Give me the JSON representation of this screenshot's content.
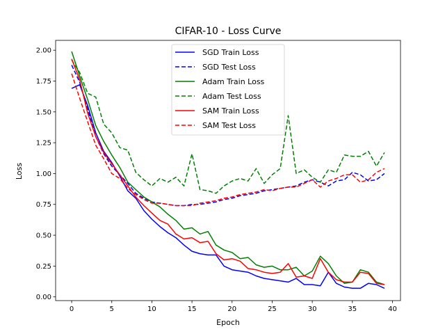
{
  "chart_data": {
    "type": "line",
    "title": "CIFAR-10 - Loss Curve",
    "xlabel": "Epoch",
    "ylabel": "Loss",
    "xlim": [
      -2,
      41
    ],
    "ylim": [
      -0.03,
      2.08
    ],
    "xticks": [
      0,
      5,
      10,
      15,
      20,
      25,
      30,
      35,
      40
    ],
    "yticks": [
      0.0,
      0.25,
      0.5,
      0.75,
      1.0,
      1.25,
      1.5,
      1.75,
      2.0
    ],
    "ytick_labels": [
      "0.00",
      "0.25",
      "0.50",
      "0.75",
      "1.00",
      "1.25",
      "1.50",
      "1.75",
      "2.00"
    ],
    "grid": false,
    "legend_position": "top-center",
    "x": [
      0,
      1,
      2,
      3,
      4,
      5,
      6,
      7,
      8,
      9,
      10,
      11,
      12,
      13,
      14,
      15,
      16,
      17,
      18,
      19,
      20,
      21,
      22,
      23,
      24,
      25,
      26,
      27,
      28,
      29,
      30,
      31,
      32,
      33,
      34,
      35,
      36,
      37,
      38,
      39
    ],
    "series": [
      {
        "name": "SGD Train Loss",
        "color": "#0000ff",
        "dash": "solid",
        "values": [
          1.69,
          1.72,
          1.55,
          1.33,
          1.18,
          1.09,
          0.98,
          0.86,
          0.8,
          0.7,
          0.63,
          0.57,
          0.52,
          0.48,
          0.42,
          0.37,
          0.35,
          0.34,
          0.34,
          0.25,
          0.22,
          0.21,
          0.2,
          0.17,
          0.15,
          0.14,
          0.13,
          0.12,
          0.15,
          0.1,
          0.1,
          0.09,
          0.2,
          0.11,
          0.08,
          0.07,
          0.07,
          0.11,
          0.1,
          0.07
        ]
      },
      {
        "name": "SGD Test Loss",
        "color": "#0000ff",
        "dash": "dashed",
        "values": [
          1.88,
          1.74,
          1.52,
          1.3,
          1.16,
          1.06,
          0.99,
          0.92,
          0.84,
          0.8,
          0.77,
          0.76,
          0.75,
          0.74,
          0.74,
          0.75,
          0.75,
          0.76,
          0.77,
          0.79,
          0.8,
          0.82,
          0.83,
          0.84,
          0.86,
          0.87,
          0.88,
          0.89,
          0.9,
          0.93,
          0.95,
          0.93,
          0.9,
          0.94,
          0.95,
          1.01,
          0.99,
          0.94,
          0.95,
          1.0
        ]
      },
      {
        "name": "Adam Train Loss",
        "color": "#008000",
        "dash": "solid",
        "values": [
          1.99,
          1.79,
          1.6,
          1.39,
          1.26,
          1.15,
          1.05,
          0.93,
          0.87,
          0.81,
          0.77,
          0.73,
          0.67,
          0.62,
          0.55,
          0.56,
          0.51,
          0.53,
          0.42,
          0.38,
          0.36,
          0.31,
          0.32,
          0.26,
          0.24,
          0.25,
          0.22,
          0.22,
          0.24,
          0.17,
          0.21,
          0.33,
          0.27,
          0.17,
          0.11,
          0.12,
          0.22,
          0.2,
          0.12,
          0.1
        ]
      },
      {
        "name": "Adam Test Loss",
        "color": "#008000",
        "dash": "dashed",
        "values": [
          1.92,
          1.82,
          1.65,
          1.62,
          1.4,
          1.33,
          1.21,
          1.19,
          1.01,
          0.95,
          0.9,
          0.96,
          0.93,
          0.97,
          0.9,
          1.16,
          0.87,
          0.86,
          0.84,
          0.9,
          0.94,
          0.96,
          0.94,
          1.04,
          0.92,
          0.99,
          1.04,
          1.47,
          1.0,
          1.03,
          0.97,
          0.93,
          1.03,
          1.01,
          1.15,
          1.14,
          1.14,
          1.18,
          1.06,
          1.17
        ]
      },
      {
        "name": "SAM Train Loss",
        "color": "#ff0000",
        "dash": "solid",
        "values": [
          1.93,
          1.76,
          1.49,
          1.3,
          1.17,
          1.08,
          0.99,
          0.9,
          0.81,
          0.74,
          0.68,
          0.62,
          0.59,
          0.51,
          0.47,
          0.48,
          0.44,
          0.45,
          0.35,
          0.3,
          0.31,
          0.29,
          0.23,
          0.22,
          0.2,
          0.19,
          0.2,
          0.27,
          0.16,
          0.17,
          0.15,
          0.31,
          0.2,
          0.14,
          0.12,
          0.12,
          0.2,
          0.19,
          0.11,
          0.1
        ]
      },
      {
        "name": "SAM Test Loss",
        "color": "#ff0000",
        "dash": "dashed",
        "values": [
          1.81,
          1.61,
          1.42,
          1.23,
          1.12,
          1.0,
          0.96,
          0.88,
          0.83,
          0.79,
          0.76,
          0.76,
          0.75,
          0.74,
          0.74,
          0.74,
          0.76,
          0.77,
          0.78,
          0.8,
          0.81,
          0.83,
          0.84,
          0.85,
          0.87,
          0.86,
          0.88,
          0.89,
          0.89,
          0.92,
          0.95,
          0.89,
          0.94,
          0.96,
          0.99,
          0.99,
          0.93,
          0.95,
          1.01,
          1.04
        ]
      }
    ]
  }
}
